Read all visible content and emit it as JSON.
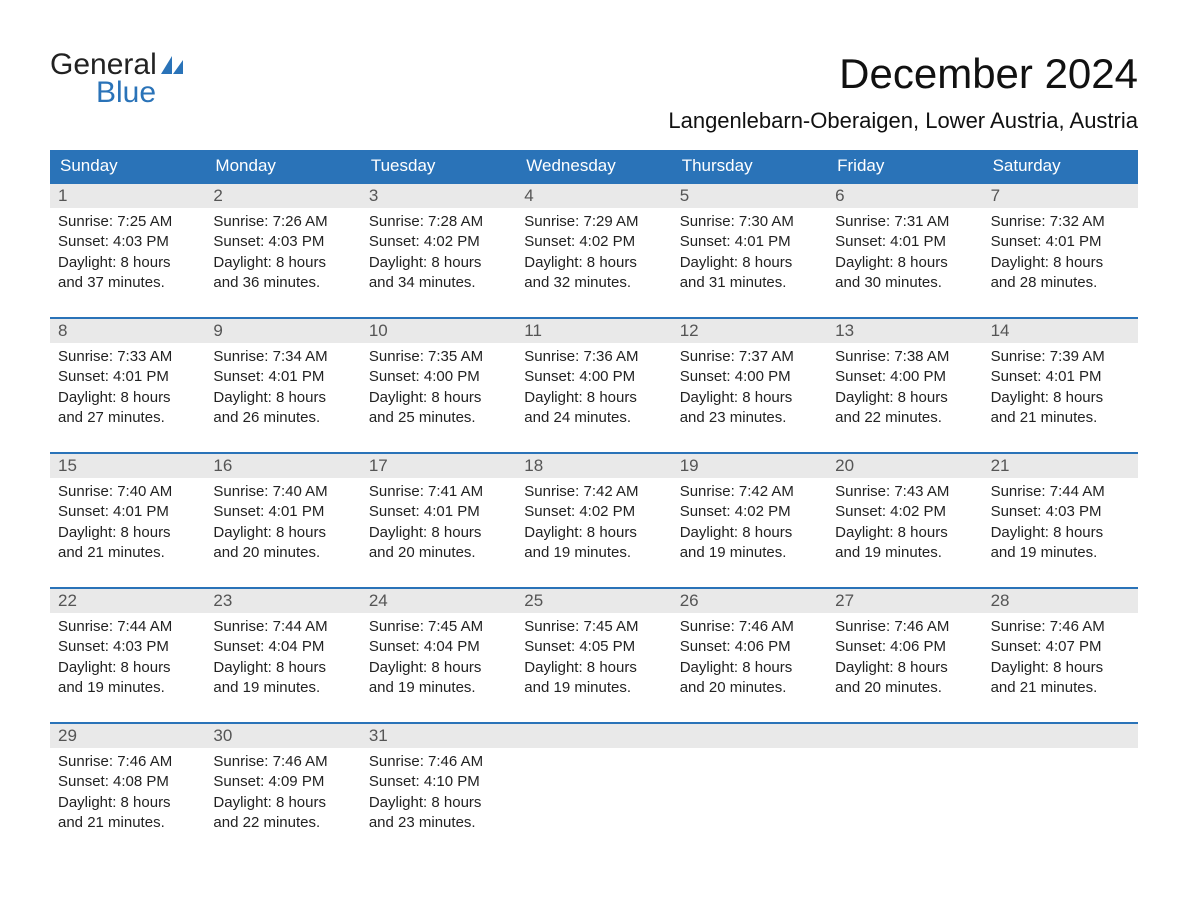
{
  "brand": {
    "word1": "General",
    "word2": "Blue",
    "accent_color": "#2a73b8"
  },
  "title": "December 2024",
  "location": "Langenlebarn-Oberaigen, Lower Austria, Austria",
  "header_bg": "#2a73b8",
  "header_fg": "#ffffff",
  "band_bg": "#e9e9e9",
  "days_of_week": [
    "Sunday",
    "Monday",
    "Tuesday",
    "Wednesday",
    "Thursday",
    "Friday",
    "Saturday"
  ],
  "weeks": [
    [
      {
        "n": "1",
        "sunrise": "Sunrise: 7:25 AM",
        "sunset": "Sunset: 4:03 PM",
        "d1": "Daylight: 8 hours",
        "d2": "and 37 minutes."
      },
      {
        "n": "2",
        "sunrise": "Sunrise: 7:26 AM",
        "sunset": "Sunset: 4:03 PM",
        "d1": "Daylight: 8 hours",
        "d2": "and 36 minutes."
      },
      {
        "n": "3",
        "sunrise": "Sunrise: 7:28 AM",
        "sunset": "Sunset: 4:02 PM",
        "d1": "Daylight: 8 hours",
        "d2": "and 34 minutes."
      },
      {
        "n": "4",
        "sunrise": "Sunrise: 7:29 AM",
        "sunset": "Sunset: 4:02 PM",
        "d1": "Daylight: 8 hours",
        "d2": "and 32 minutes."
      },
      {
        "n": "5",
        "sunrise": "Sunrise: 7:30 AM",
        "sunset": "Sunset: 4:01 PM",
        "d1": "Daylight: 8 hours",
        "d2": "and 31 minutes."
      },
      {
        "n": "6",
        "sunrise": "Sunrise: 7:31 AM",
        "sunset": "Sunset: 4:01 PM",
        "d1": "Daylight: 8 hours",
        "d2": "and 30 minutes."
      },
      {
        "n": "7",
        "sunrise": "Sunrise: 7:32 AM",
        "sunset": "Sunset: 4:01 PM",
        "d1": "Daylight: 8 hours",
        "d2": "and 28 minutes."
      }
    ],
    [
      {
        "n": "8",
        "sunrise": "Sunrise: 7:33 AM",
        "sunset": "Sunset: 4:01 PM",
        "d1": "Daylight: 8 hours",
        "d2": "and 27 minutes."
      },
      {
        "n": "9",
        "sunrise": "Sunrise: 7:34 AM",
        "sunset": "Sunset: 4:01 PM",
        "d1": "Daylight: 8 hours",
        "d2": "and 26 minutes."
      },
      {
        "n": "10",
        "sunrise": "Sunrise: 7:35 AM",
        "sunset": "Sunset: 4:00 PM",
        "d1": "Daylight: 8 hours",
        "d2": "and 25 minutes."
      },
      {
        "n": "11",
        "sunrise": "Sunrise: 7:36 AM",
        "sunset": "Sunset: 4:00 PM",
        "d1": "Daylight: 8 hours",
        "d2": "and 24 minutes."
      },
      {
        "n": "12",
        "sunrise": "Sunrise: 7:37 AM",
        "sunset": "Sunset: 4:00 PM",
        "d1": "Daylight: 8 hours",
        "d2": "and 23 minutes."
      },
      {
        "n": "13",
        "sunrise": "Sunrise: 7:38 AM",
        "sunset": "Sunset: 4:00 PM",
        "d1": "Daylight: 8 hours",
        "d2": "and 22 minutes."
      },
      {
        "n": "14",
        "sunrise": "Sunrise: 7:39 AM",
        "sunset": "Sunset: 4:01 PM",
        "d1": "Daylight: 8 hours",
        "d2": "and 21 minutes."
      }
    ],
    [
      {
        "n": "15",
        "sunrise": "Sunrise: 7:40 AM",
        "sunset": "Sunset: 4:01 PM",
        "d1": "Daylight: 8 hours",
        "d2": "and 21 minutes."
      },
      {
        "n": "16",
        "sunrise": "Sunrise: 7:40 AM",
        "sunset": "Sunset: 4:01 PM",
        "d1": "Daylight: 8 hours",
        "d2": "and 20 minutes."
      },
      {
        "n": "17",
        "sunrise": "Sunrise: 7:41 AM",
        "sunset": "Sunset: 4:01 PM",
        "d1": "Daylight: 8 hours",
        "d2": "and 20 minutes."
      },
      {
        "n": "18",
        "sunrise": "Sunrise: 7:42 AM",
        "sunset": "Sunset: 4:02 PM",
        "d1": "Daylight: 8 hours",
        "d2": "and 19 minutes."
      },
      {
        "n": "19",
        "sunrise": "Sunrise: 7:42 AM",
        "sunset": "Sunset: 4:02 PM",
        "d1": "Daylight: 8 hours",
        "d2": "and 19 minutes."
      },
      {
        "n": "20",
        "sunrise": "Sunrise: 7:43 AM",
        "sunset": "Sunset: 4:02 PM",
        "d1": "Daylight: 8 hours",
        "d2": "and 19 minutes."
      },
      {
        "n": "21",
        "sunrise": "Sunrise: 7:44 AM",
        "sunset": "Sunset: 4:03 PM",
        "d1": "Daylight: 8 hours",
        "d2": "and 19 minutes."
      }
    ],
    [
      {
        "n": "22",
        "sunrise": "Sunrise: 7:44 AM",
        "sunset": "Sunset: 4:03 PM",
        "d1": "Daylight: 8 hours",
        "d2": "and 19 minutes."
      },
      {
        "n": "23",
        "sunrise": "Sunrise: 7:44 AM",
        "sunset": "Sunset: 4:04 PM",
        "d1": "Daylight: 8 hours",
        "d2": "and 19 minutes."
      },
      {
        "n": "24",
        "sunrise": "Sunrise: 7:45 AM",
        "sunset": "Sunset: 4:04 PM",
        "d1": "Daylight: 8 hours",
        "d2": "and 19 minutes."
      },
      {
        "n": "25",
        "sunrise": "Sunrise: 7:45 AM",
        "sunset": "Sunset: 4:05 PM",
        "d1": "Daylight: 8 hours",
        "d2": "and 19 minutes."
      },
      {
        "n": "26",
        "sunrise": "Sunrise: 7:46 AM",
        "sunset": "Sunset: 4:06 PM",
        "d1": "Daylight: 8 hours",
        "d2": "and 20 minutes."
      },
      {
        "n": "27",
        "sunrise": "Sunrise: 7:46 AM",
        "sunset": "Sunset: 4:06 PM",
        "d1": "Daylight: 8 hours",
        "d2": "and 20 minutes."
      },
      {
        "n": "28",
        "sunrise": "Sunrise: 7:46 AM",
        "sunset": "Sunset: 4:07 PM",
        "d1": "Daylight: 8 hours",
        "d2": "and 21 minutes."
      }
    ],
    [
      {
        "n": "29",
        "sunrise": "Sunrise: 7:46 AM",
        "sunset": "Sunset: 4:08 PM",
        "d1": "Daylight: 8 hours",
        "d2": "and 21 minutes."
      },
      {
        "n": "30",
        "sunrise": "Sunrise: 7:46 AM",
        "sunset": "Sunset: 4:09 PM",
        "d1": "Daylight: 8 hours",
        "d2": "and 22 minutes."
      },
      {
        "n": "31",
        "sunrise": "Sunrise: 7:46 AM",
        "sunset": "Sunset: 4:10 PM",
        "d1": "Daylight: 8 hours",
        "d2": "and 23 minutes."
      },
      null,
      null,
      null,
      null
    ]
  ]
}
